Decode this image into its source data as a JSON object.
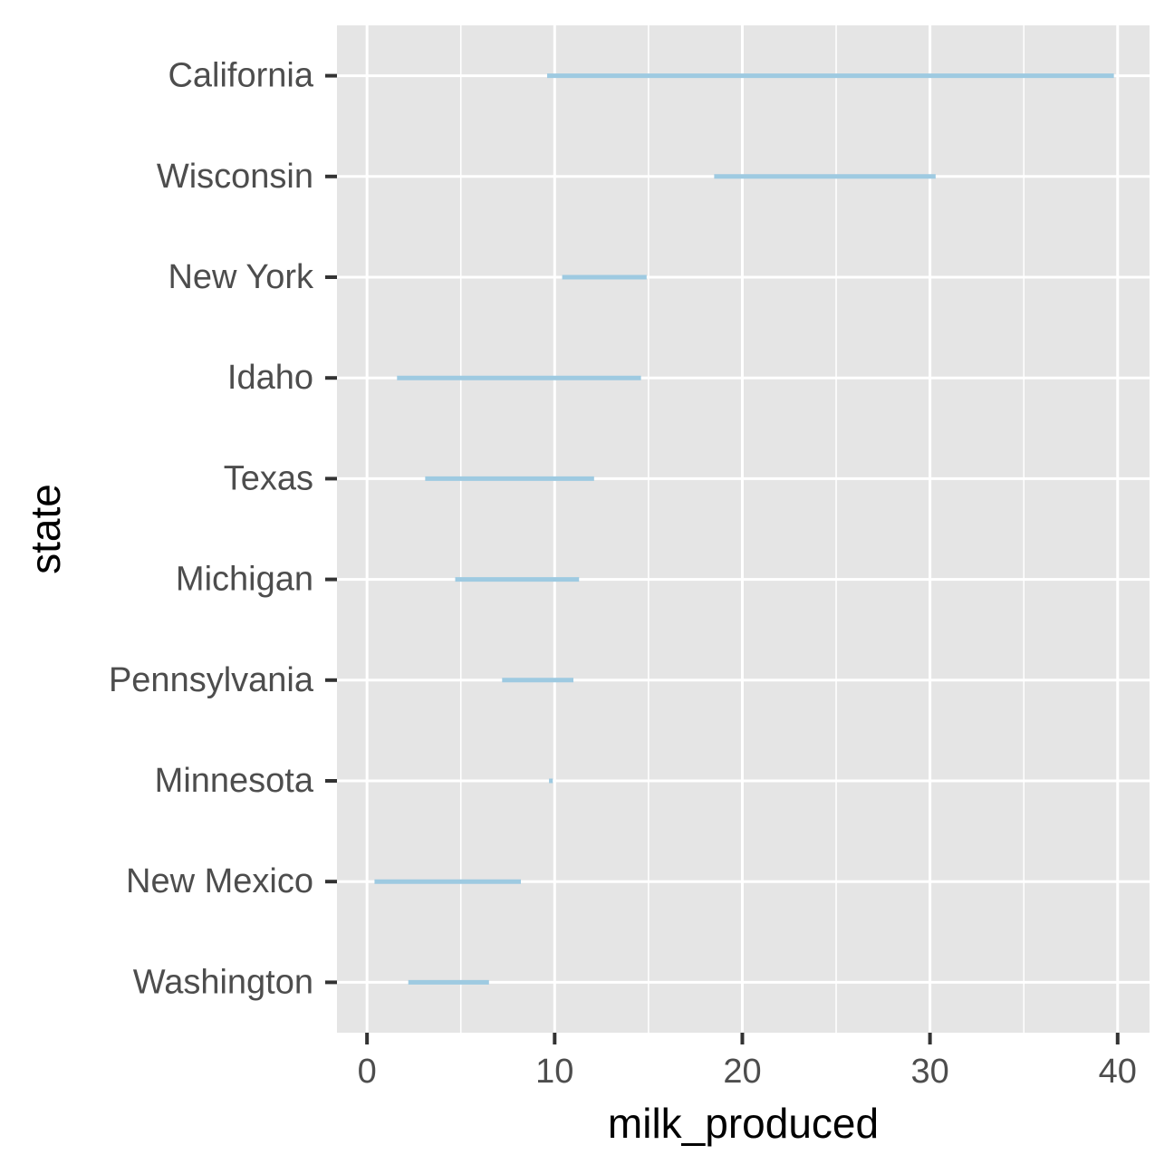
{
  "chart_data": {
    "type": "range-segment",
    "xlabel": "milk_produced",
    "ylabel": "state",
    "xlim": [
      -1.6,
      41.7
    ],
    "x_ticks": [
      0,
      10,
      20,
      30,
      40
    ],
    "x_tick_labels": [
      "0",
      "10",
      "20",
      "30",
      "40"
    ],
    "x_minor_ticks": [
      5,
      15,
      25,
      35
    ],
    "grid": true,
    "categories": [
      "California",
      "Wisconsin",
      "New York",
      "Idaho",
      "Texas",
      "Michigan",
      "Pennsylvania",
      "Minnesota",
      "New Mexico",
      "Washington"
    ],
    "segments": [
      {
        "state": "California",
        "start": 9.6,
        "end": 39.8
      },
      {
        "state": "Wisconsin",
        "start": 18.5,
        "end": 30.3
      },
      {
        "state": "New York",
        "start": 10.4,
        "end": 14.9
      },
      {
        "state": "Idaho",
        "start": 1.6,
        "end": 14.6
      },
      {
        "state": "Texas",
        "start": 3.1,
        "end": 12.1
      },
      {
        "state": "Michigan",
        "start": 4.7,
        "end": 11.3
      },
      {
        "state": "Pennsylvania",
        "start": 7.2,
        "end": 11.0
      },
      {
        "state": "Minnesota",
        "start": 9.7,
        "end": 9.9
      },
      {
        "state": "New Mexico",
        "start": 0.4,
        "end": 8.2
      },
      {
        "state": "Washington",
        "start": 2.2,
        "end": 6.5
      }
    ],
    "colors": {
      "panel": "#e5e5e5",
      "grid": "#ffffff",
      "segment": "#9ecae1",
      "tick": "#333333"
    }
  }
}
